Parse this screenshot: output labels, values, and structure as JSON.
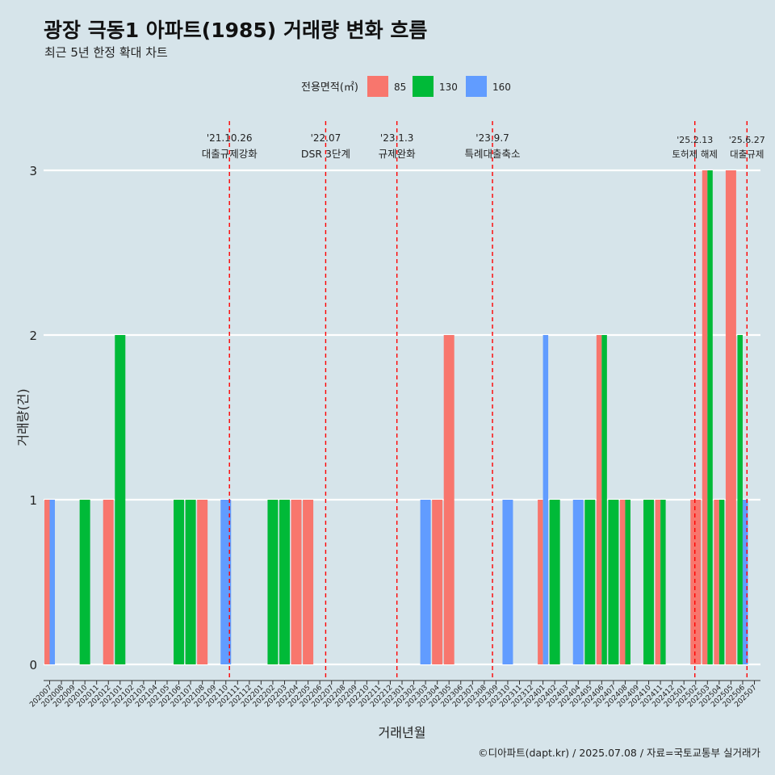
{
  "header": {
    "title": "광장 극동1 아파트(1985) 거래량 변화 흐름",
    "subtitle": "최근 5년 한정 확대 차트"
  },
  "caption": "©디아파트(dapt.kr) / 2025.07.08 / 자료=국토교통부 실거래가",
  "colors": {
    "85": "#f8766d",
    "130": "#00ba38",
    "160": "#619cff",
    "event_line": "#ff0000",
    "background": "#d6e4ea"
  },
  "chart_data": {
    "type": "bar",
    "title": "광장 극동1 아파트(1985) 거래량 변화 흐름",
    "subtitle": "최근 5년 한정 확대 차트",
    "xlabel": "거래년월",
    "ylabel": "거래량(건)",
    "ylim": [
      0,
      3
    ],
    "yticks": [
      0,
      1,
      2,
      3
    ],
    "grid": "horizontal major",
    "legend": {
      "title": "전용면적(㎡)",
      "position": "top",
      "entries": [
        "85",
        "130",
        "160"
      ]
    },
    "categories": [
      "202007",
      "202008",
      "202009",
      "202010",
      "202011",
      "202012",
      "202101",
      "202102",
      "202103",
      "202104",
      "202105",
      "202106",
      "202107",
      "202108",
      "202109",
      "202110",
      "202111",
      "202112",
      "202201",
      "202202",
      "202203",
      "202204",
      "202205",
      "202206",
      "202207",
      "202208",
      "202209",
      "202210",
      "202211",
      "202212",
      "202301",
      "202302",
      "202303",
      "202304",
      "202305",
      "202306",
      "202307",
      "202308",
      "202309",
      "202310",
      "202311",
      "202312",
      "202401",
      "202402",
      "202403",
      "202404",
      "202405",
      "202406",
      "202407",
      "202408",
      "202409",
      "202410",
      "202411",
      "202412",
      "202501",
      "202502",
      "202503",
      "202504",
      "202505",
      "202506",
      "202507"
    ],
    "bars": [
      {
        "month": "202007",
        "segments": [
          {
            "area": "85",
            "value": 1
          },
          {
            "area": "160",
            "value": 1
          }
        ]
      },
      {
        "month": "202010",
        "segments": [
          {
            "area": "130",
            "value": 1
          }
        ]
      },
      {
        "month": "202012",
        "segments": [
          {
            "area": "85",
            "value": 1
          }
        ]
      },
      {
        "month": "202101",
        "segments": [
          {
            "area": "130",
            "value": 2
          }
        ]
      },
      {
        "month": "202106",
        "segments": [
          {
            "area": "130",
            "value": 1
          }
        ]
      },
      {
        "month": "202107",
        "segments": [
          {
            "area": "130",
            "value": 1
          }
        ]
      },
      {
        "month": "202108",
        "segments": [
          {
            "area": "85",
            "value": 1
          }
        ]
      },
      {
        "month": "202110",
        "segments": [
          {
            "area": "160",
            "value": 1
          }
        ]
      },
      {
        "month": "202202",
        "segments": [
          {
            "area": "130",
            "value": 1
          }
        ]
      },
      {
        "month": "202203",
        "segments": [
          {
            "area": "130",
            "value": 1
          }
        ]
      },
      {
        "month": "202204",
        "segments": [
          {
            "area": "85",
            "value": 1
          }
        ]
      },
      {
        "month": "202205",
        "segments": [
          {
            "area": "85",
            "value": 1
          }
        ]
      },
      {
        "month": "202303",
        "segments": [
          {
            "area": "160",
            "value": 1
          }
        ]
      },
      {
        "month": "202304",
        "segments": [
          {
            "area": "85",
            "value": 1
          }
        ]
      },
      {
        "month": "202305",
        "segments": [
          {
            "area": "85",
            "value": 2
          }
        ]
      },
      {
        "month": "202310",
        "segments": [
          {
            "area": "160",
            "value": 1
          }
        ]
      },
      {
        "month": "202401",
        "segments": [
          {
            "area": "85",
            "value": 1
          },
          {
            "area": "160",
            "value": 2
          }
        ]
      },
      {
        "month": "202402",
        "segments": [
          {
            "area": "130",
            "value": 1
          }
        ]
      },
      {
        "month": "202404",
        "segments": [
          {
            "area": "160",
            "value": 1
          }
        ]
      },
      {
        "month": "202405",
        "segments": [
          {
            "area": "130",
            "value": 1
          }
        ]
      },
      {
        "month": "202406",
        "segments": [
          {
            "area": "85",
            "value": 2
          },
          {
            "area": "130",
            "value": 2
          }
        ]
      },
      {
        "month": "202407",
        "segments": [
          {
            "area": "130",
            "value": 1
          }
        ]
      },
      {
        "month": "202408",
        "segments": [
          {
            "area": "85",
            "value": 1
          },
          {
            "area": "130",
            "value": 1
          }
        ]
      },
      {
        "month": "202410",
        "segments": [
          {
            "area": "130",
            "value": 1
          }
        ]
      },
      {
        "month": "202411",
        "segments": [
          {
            "area": "85",
            "value": 1
          },
          {
            "area": "130",
            "value": 1
          }
        ]
      },
      {
        "month": "202502",
        "segments": [
          {
            "area": "85",
            "value": 1
          }
        ]
      },
      {
        "month": "202503",
        "segments": [
          {
            "area": "85",
            "value": 3
          },
          {
            "area": "130",
            "value": 3
          }
        ]
      },
      {
        "month": "202504",
        "segments": [
          {
            "area": "85",
            "value": 1
          },
          {
            "area": "130",
            "value": 1
          }
        ]
      },
      {
        "month": "202505",
        "segments": [
          {
            "area": "85",
            "value": 3
          }
        ]
      },
      {
        "month": "202506",
        "segments": [
          {
            "area": "130",
            "value": 2
          },
          {
            "area": "160",
            "value": 1
          }
        ]
      }
    ],
    "events": [
      {
        "date": "2021-10-26",
        "label": "'21.10.26",
        "desc": "대출규제강화"
      },
      {
        "date": "2022-07-01",
        "label": "'22.07",
        "desc": "DSR 3단계"
      },
      {
        "date": "2023-01-03",
        "label": "'23.1.3",
        "desc": "규제완화"
      },
      {
        "date": "2023-09-07",
        "label": "'23.9.7",
        "desc": "특례대출축소"
      },
      {
        "date": "2025-02-13",
        "label": "'25.2.13",
        "desc": "토허제 해제"
      },
      {
        "date": "2025-06-27",
        "label": "'25.6.27",
        "desc": "대출규제"
      }
    ]
  }
}
